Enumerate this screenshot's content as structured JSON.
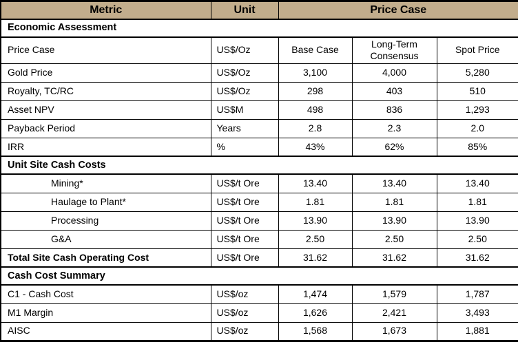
{
  "colors": {
    "header_bg": "#C2AD8C",
    "border": "#000000",
    "text": "#000000",
    "background": "#FFFFFF"
  },
  "table": {
    "header": {
      "metric": "Metric",
      "unit": "Unit",
      "price_case": "Price Case"
    },
    "price_case_columns": [
      "Base Case",
      "Long-Term Consensus",
      "Spot Price"
    ],
    "rows": [
      {
        "type": "section",
        "label": "Economic Assessment"
      },
      {
        "type": "data",
        "label": "Price Case",
        "unit": "US$/Oz",
        "values": [
          "Base Case",
          "Long-Term Consensus",
          "Spot Price"
        ],
        "tall": true
      },
      {
        "type": "data",
        "label": "Gold Price",
        "unit": "US$/Oz",
        "values": [
          "3,100",
          "4,000",
          "5,280"
        ]
      },
      {
        "type": "data",
        "label": "Royalty, TC/RC",
        "unit": "US$/Oz",
        "values": [
          "298",
          "403",
          "510"
        ]
      },
      {
        "type": "data",
        "label": "Asset NPV",
        "unit": "US$M",
        "values": [
          "498",
          "836",
          "1,293"
        ]
      },
      {
        "type": "data",
        "label": "Payback Period",
        "unit": "Years",
        "values": [
          "2.8",
          "2.3",
          "2.0"
        ]
      },
      {
        "type": "data",
        "label": "IRR",
        "unit": "%",
        "values": [
          "43%",
          "62%",
          "85%"
        ]
      },
      {
        "type": "section",
        "label": "Unit Site Cash Costs"
      },
      {
        "type": "data",
        "label": "Mining*",
        "unit": "US$/t Ore",
        "values": [
          "13.40",
          "13.40",
          "13.40"
        ],
        "indent": true
      },
      {
        "type": "data",
        "label": "Haulage to Plant*",
        "unit": "US$/t Ore",
        "values": [
          "1.81",
          "1.81",
          "1.81"
        ],
        "indent": true
      },
      {
        "type": "data",
        "label": "Processing",
        "unit": "US$/t Ore",
        "values": [
          "13.90",
          "13.90",
          "13.90"
        ],
        "indent": true
      },
      {
        "type": "data",
        "label": "G&A",
        "unit": "US$/t Ore",
        "values": [
          "2.50",
          "2.50",
          "2.50"
        ],
        "indent": true
      },
      {
        "type": "data",
        "label": "Total Site Cash Operating Cost",
        "unit": "US$/t Ore",
        "values": [
          "31.62",
          "31.62",
          "31.62"
        ],
        "bold_label": true
      },
      {
        "type": "section",
        "label": "Cash Cost Summary"
      },
      {
        "type": "data",
        "label": "C1 - Cash Cost",
        "unit": "US$/oz",
        "values": [
          "1,474",
          "1,579",
          "1,787"
        ]
      },
      {
        "type": "data",
        "label": "M1 Margin",
        "unit": "US$/oz",
        "values": [
          "1,626",
          "2,421",
          "3,493"
        ]
      },
      {
        "type": "data",
        "label": "AISC",
        "unit": "US$/oz",
        "values": [
          "1,568",
          "1,673",
          "1,881"
        ]
      }
    ]
  }
}
